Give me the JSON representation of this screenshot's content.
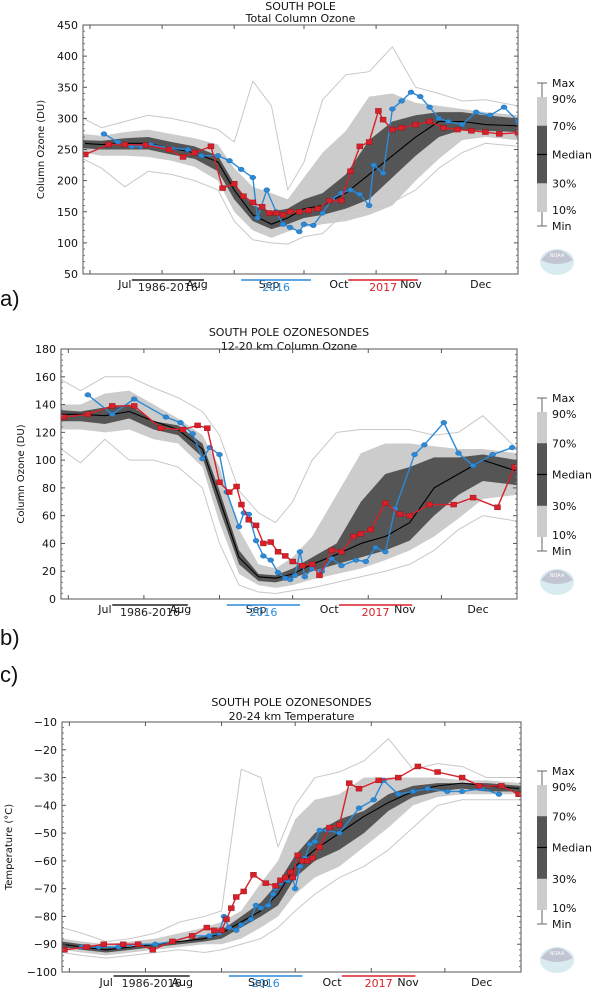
{
  "figure": {
    "panel_labels": [
      "a)",
      "b)",
      "c)"
    ],
    "legend_years": {
      "climatology": {
        "label": "1986-2016",
        "color": "#222222"
      },
      "year2016": {
        "label": "2016",
        "color": "#2a8ad8"
      },
      "year2017": {
        "label": "2017",
        "color": "#d8202a"
      }
    },
    "legend_box": {
      "max": "Max",
      "p90": "90%",
      "p70": "70%",
      "median": "Median",
      "p30": "30%",
      "p10": "10%",
      "min": "Min"
    },
    "colors": {
      "band_10_90": "#cccccc",
      "band_30_70": "#555555",
      "median": "#000000",
      "minmax": "#c8c8c8",
      "y2016": "#2a8ad8",
      "y2017": "#d8202a"
    },
    "logo_text": "NOAA"
  },
  "chart_data": [
    {
      "id": "a",
      "type": "line",
      "title": "SOUTH POLE",
      "subtitle": "Total Column Ozone",
      "xlabel": "",
      "ylabel": "Column Ozone (DU)",
      "xlim": [
        -3,
        184
      ],
      "ylim": [
        50,
        450
      ],
      "yticks": [
        50,
        100,
        150,
        200,
        250,
        300,
        350,
        400,
        450
      ],
      "month_ticks": [
        0,
        31,
        62,
        92,
        123,
        153
      ],
      "month_labels": [
        {
          "x": 15,
          "label": "Jul"
        },
        {
          "x": 46,
          "label": "Aug"
        },
        {
          "x": 77,
          "label": "Sep"
        },
        {
          "x": 107,
          "label": "Oct"
        },
        {
          "x": 138,
          "label": "Nov"
        },
        {
          "x": 168,
          "label": "Dec"
        }
      ],
      "x": [
        -3,
        5,
        15,
        25,
        35,
        45,
        55,
        62,
        70,
        78,
        85,
        92,
        100,
        110,
        120,
        130,
        140,
        150,
        160,
        170,
        184
      ],
      "max": [
        300,
        285,
        295,
        305,
        300,
        292,
        282,
        262,
        360,
        320,
        185,
        230,
        330,
        370,
        375,
        415,
        350,
        340,
        328,
        330,
        320
      ],
      "p90": [
        275,
        272,
        278,
        282,
        275,
        268,
        258,
        220,
        190,
        180,
        170,
        205,
        245,
        280,
        335,
        340,
        325,
        320,
        315,
        310,
        305
      ],
      "p70": [
        265,
        264,
        268,
        270,
        262,
        255,
        240,
        195,
        160,
        150,
        155,
        170,
        180,
        210,
        265,
        295,
        305,
        310,
        310,
        305,
        300
      ],
      "median": [
        260,
        258,
        260,
        260,
        252,
        245,
        230,
        185,
        145,
        130,
        140,
        155,
        160,
        180,
        210,
        240,
        270,
        295,
        295,
        290,
        288
      ],
      "p30": [
        252,
        250,
        250,
        250,
        242,
        235,
        215,
        170,
        135,
        122,
        130,
        140,
        145,
        155,
        170,
        205,
        240,
        270,
        282,
        280,
        278
      ],
      "p10": [
        245,
        240,
        240,
        238,
        232,
        222,
        200,
        150,
        120,
        108,
        118,
        125,
        130,
        135,
        145,
        160,
        200,
        235,
        265,
        270,
        265
      ],
      "min": [
        235,
        220,
        190,
        215,
        210,
        200,
        185,
        135,
        105,
        100,
        98,
        110,
        115,
        150,
        155,
        165,
        185,
        220,
        245,
        260,
        255
      ],
      "series": [
        {
          "name": "2016",
          "x": [
            6,
            12,
            18,
            22,
            26,
            35,
            42,
            48,
            55,
            60,
            65,
            70,
            72,
            76,
            80,
            83,
            86,
            90,
            92,
            96,
            100,
            104,
            108,
            112,
            116,
            120,
            122,
            126,
            130,
            134,
            138,
            142,
            146,
            150,
            154,
            160,
            166,
            172,
            178,
            184
          ],
          "values": [
            275,
            262,
            255,
            255,
            258,
            252,
            250,
            240,
            240,
            232,
            218,
            205,
            140,
            185,
            150,
            130,
            125,
            118,
            130,
            128,
            148,
            170,
            180,
            185,
            178,
            160,
            225,
            212,
            315,
            328,
            342,
            335,
            318,
            300,
            295,
            290,
            310,
            305,
            318,
            295
          ]
        },
        {
          "name": "2017",
          "x": [
            -2,
            8,
            15,
            24,
            34,
            40,
            45,
            52,
            57,
            62,
            66,
            70,
            74,
            77,
            80,
            83,
            86,
            90,
            94,
            98,
            103,
            108,
            112,
            116,
            120,
            124,
            126,
            130,
            134,
            140,
            146,
            152,
            158,
            164,
            170,
            176,
            184
          ],
          "values": [
            242,
            258,
            258,
            257,
            250,
            238,
            245,
            255,
            188,
            195,
            175,
            165,
            158,
            148,
            148,
            145,
            150,
            150,
            152,
            155,
            168,
            168,
            215,
            255,
            262,
            312,
            298,
            282,
            285,
            290,
            295,
            285,
            282,
            280,
            278,
            275,
            277
          ]
        }
      ]
    },
    {
      "id": "b",
      "type": "line",
      "title": "SOUTH POLE OZONESONDES",
      "subtitle": "12-20 km Column Ozone",
      "xlabel": "",
      "ylabel": "Column Ozone (DU)",
      "xlim": [
        -3,
        184
      ],
      "ylim": [
        0,
        180
      ],
      "yticks": [
        0,
        20,
        40,
        60,
        80,
        100,
        120,
        140,
        160,
        180
      ],
      "month_ticks": [
        0,
        31,
        62,
        92,
        123,
        153
      ],
      "month_labels": [
        {
          "x": 15,
          "label": "Jul"
        },
        {
          "x": 46,
          "label": "Aug"
        },
        {
          "x": 77,
          "label": "Sep"
        },
        {
          "x": 107,
          "label": "Oct"
        },
        {
          "x": 138,
          "label": "Nov"
        },
        {
          "x": 168,
          "label": "Dec"
        }
      ],
      "x": [
        -3,
        5,
        15,
        25,
        35,
        45,
        55,
        62,
        70,
        78,
        85,
        92,
        100,
        110,
        120,
        130,
        140,
        150,
        160,
        170,
        184
      ],
      "max": [
        158,
        150,
        160,
        160,
        152,
        145,
        135,
        118,
        78,
        62,
        55,
        70,
        100,
        120,
        122,
        122,
        122,
        118,
        120,
        132,
        108
      ],
      "p90": [
        140,
        140,
        148,
        150,
        140,
        130,
        118,
        95,
        50,
        25,
        22,
        30,
        45,
        75,
        105,
        112,
        112,
        110,
        108,
        108,
        105
      ],
      "p70": [
        136,
        135,
        138,
        140,
        128,
        125,
        112,
        78,
        35,
        18,
        17,
        22,
        30,
        40,
        70,
        90,
        95,
        102,
        102,
        104,
        100
      ],
      "median": [
        133,
        133,
        132,
        135,
        128,
        122,
        108,
        72,
        30,
        16,
        15,
        18,
        25,
        32,
        40,
        45,
        55,
        80,
        90,
        100,
        92
      ],
      "p30": [
        128,
        128,
        126,
        130,
        122,
        118,
        102,
        65,
        25,
        13,
        12,
        15,
        20,
        25,
        30,
        35,
        42,
        60,
        75,
        85,
        82
      ],
      "p10": [
        122,
        122,
        120,
        122,
        115,
        112,
        95,
        55,
        18,
        10,
        8,
        10,
        14,
        18,
        22,
        28,
        35,
        45,
        58,
        72,
        75
      ],
      "min": [
        108,
        98,
        115,
        100,
        100,
        95,
        80,
        40,
        10,
        5,
        4,
        6,
        8,
        12,
        16,
        20,
        25,
        35,
        50,
        60,
        56
      ],
      "series": [
        {
          "name": "2016",
          "x": [
            8,
            18,
            27,
            40,
            46,
            51,
            55,
            58,
            62,
            65,
            70,
            72,
            74,
            77,
            80,
            83,
            86,
            89,
            91,
            93,
            95,
            97,
            100,
            104,
            108,
            112,
            118,
            122,
            126,
            130,
            134,
            142,
            146,
            154,
            160,
            166,
            174,
            182
          ],
          "values": [
            147,
            133,
            144,
            131,
            127,
            119,
            101,
            109,
            104,
            77,
            52,
            62,
            61,
            42,
            31,
            28,
            19,
            15,
            14,
            17,
            34,
            16,
            22,
            20,
            29,
            24,
            28,
            27,
            37,
            34,
            65,
            104,
            111,
            127,
            105,
            96,
            104,
            109
          ]
        },
        {
          "name": "2017",
          "x": [
            -2,
            8,
            18,
            27,
            38,
            47,
            53,
            57,
            62,
            66,
            69,
            71,
            74,
            77,
            80,
            83,
            86,
            89,
            92,
            96,
            100,
            103,
            108,
            112,
            117,
            120,
            124,
            130,
            136,
            140,
            148,
            158,
            166,
            176,
            183
          ],
          "values": [
            131,
            133,
            139,
            139,
            123,
            122,
            125,
            123,
            84,
            77,
            81,
            68,
            57,
            53,
            40,
            41,
            34,
            31,
            27,
            24,
            25,
            17,
            35,
            34,
            45,
            47,
            50,
            69,
            61,
            60,
            68,
            68,
            73,
            66,
            95
          ]
        }
      ]
    },
    {
      "id": "c",
      "type": "line",
      "title": "SOUTH POLE OZONESONDES",
      "subtitle": "20-24 km Temperature",
      "xlabel": "",
      "ylabel": "Temperature (°C)",
      "xlim": [
        -3,
        184
      ],
      "ylim": [
        -100,
        -10
      ],
      "yticks": [
        -100,
        -90,
        -80,
        -70,
        -60,
        -50,
        -40,
        -30,
        -20,
        -10
      ],
      "month_ticks": [
        0,
        31,
        62,
        92,
        123,
        153
      ],
      "month_labels": [
        {
          "x": 15,
          "label": "Jul"
        },
        {
          "x": 46,
          "label": "Aug"
        },
        {
          "x": 77,
          "label": "Sep"
        },
        {
          "x": 107,
          "label": "Oct"
        },
        {
          "x": 138,
          "label": "Nov"
        },
        {
          "x": 168,
          "label": "Dec"
        }
      ],
      "x": [
        -3,
        5,
        15,
        25,
        35,
        45,
        55,
        62,
        70,
        78,
        85,
        92,
        100,
        110,
        120,
        130,
        140,
        150,
        160,
        170,
        184
      ],
      "max": [
        -84,
        -86,
        -89,
        -88,
        -86,
        -82,
        -80,
        -78,
        -27,
        -30,
        -55,
        -40,
        -30,
        -28,
        -24,
        -16,
        -27,
        -25,
        -26,
        -30,
        -30
      ],
      "p90": [
        -88,
        -89,
        -90,
        -89,
        -88,
        -86,
        -84,
        -82,
        -78,
        -68,
        -60,
        -45,
        -38,
        -36,
        -30,
        -30,
        -30,
        -30,
        -31,
        -31,
        -32
      ],
      "p70": [
        -89,
        -90,
        -91,
        -91,
        -90,
        -89,
        -87,
        -85,
        -80,
        -75,
        -68,
        -58,
        -50,
        -45,
        -42,
        -36,
        -33,
        -32,
        -32,
        -32,
        -33
      ],
      "median": [
        -90,
        -91,
        -92,
        -91,
        -90,
        -89,
        -88,
        -86,
        -82,
        -78,
        -72,
        -62,
        -56,
        -50,
        -44,
        -39,
        -35,
        -33,
        -32,
        -33,
        -34
      ],
      "p30": [
        -91,
        -92,
        -93,
        -92,
        -91,
        -90,
        -89,
        -88,
        -84,
        -80,
        -76,
        -66,
        -60,
        -56,
        -50,
        -42,
        -37,
        -35,
        -34,
        -35,
        -35
      ],
      "p10": [
        -92,
        -93,
        -94,
        -93,
        -92,
        -91,
        -90,
        -90,
        -88,
        -84,
        -80,
        -72,
        -66,
        -62,
        -55,
        -48,
        -40,
        -37,
        -36,
        -36,
        -36
      ],
      "min": [
        -93,
        -94,
        -95,
        -94,
        -93,
        -92,
        -93,
        -92,
        -90,
        -88,
        -84,
        -78,
        -72,
        -66,
        -62,
        -56,
        -48,
        -40,
        -38,
        -38,
        -38
      ],
      "series": [
        {
          "name": "2016",
          "x": [
            5,
            12,
            20,
            28,
            35,
            42,
            50,
            57,
            61,
            63,
            65,
            68,
            70,
            74,
            76,
            78,
            81,
            83,
            84,
            86,
            87,
            89,
            91,
            92,
            94,
            96,
            98,
            100,
            102,
            105,
            110,
            118,
            124,
            128,
            134,
            140,
            146,
            154,
            160,
            168,
            175
          ],
          "values": [
            -91,
            -91,
            -91,
            -90,
            -90,
            -89,
            -87,
            -87,
            -86,
            -80,
            -84,
            -85,
            -83,
            -81,
            -76,
            -77,
            -76,
            -72,
            -70,
            -68,
            -67,
            -67,
            -66,
            -70,
            -62,
            -59,
            -54,
            -53,
            -49,
            -49,
            -50,
            -41,
            -38,
            -31,
            -36,
            -35,
            -34,
            -35,
            -35,
            -34,
            -36
          ]
        },
        {
          "name": "2017",
          "x": [
            -2,
            7,
            14,
            22,
            28,
            34,
            42,
            50,
            56,
            59,
            62,
            64,
            66,
            68,
            71,
            75,
            80,
            84,
            86,
            88,
            90,
            91,
            93,
            95,
            97,
            99,
            102,
            106,
            110,
            114,
            118,
            126,
            134,
            142,
            150,
            160,
            167,
            176,
            183
          ],
          "values": [
            -92,
            -91,
            -90,
            -90,
            -90,
            -92,
            -89,
            -87,
            -84,
            -85,
            -85,
            -81,
            -77,
            -73,
            -71,
            -65,
            -68,
            -69,
            -67,
            -66,
            -64,
            -66,
            -58,
            -60,
            -60,
            -59,
            -55,
            -48,
            -47,
            -32,
            -34,
            -31,
            -30,
            -26,
            -28,
            -30,
            -33,
            -33,
            -36
          ]
        }
      ]
    }
  ]
}
